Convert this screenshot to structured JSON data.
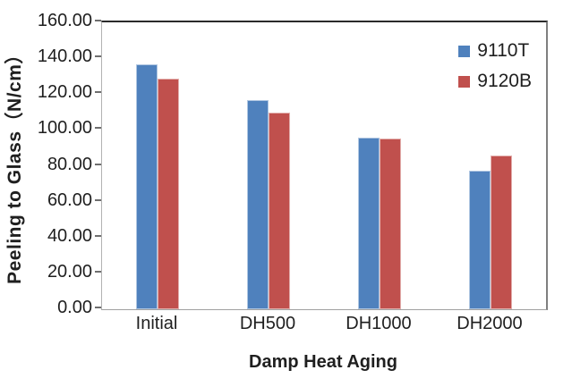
{
  "chart_data": {
    "type": "bar",
    "title": "",
    "categories": [
      "Initial",
      "DH500",
      "DH1000",
      "DH2000"
    ],
    "series": [
      {
        "name": "9110T",
        "color": "#4F81BD",
        "values": [
          136.5,
          116.5,
          95.5,
          77.5
        ]
      },
      {
        "name": "9120B",
        "color": "#C0504D",
        "values": [
          128.5,
          109.5,
          95.0,
          85.5
        ]
      }
    ],
    "xlabel": "Damp Heat Aging",
    "ylabel": "Peeling to Glass（N/cm）",
    "ylim": [
      0,
      160
    ],
    "ytick_step": 20,
    "ytick_labels": [
      "0.00",
      "20.00",
      "40.00",
      "60.00",
      "80.00",
      "100.00",
      "120.00",
      "140.00",
      "160.00"
    ],
    "grid": false,
    "legend_position": "top-right-inside",
    "colors": {
      "axis_line": "#a0a0a0",
      "plot_border_top": "#2b2b2b",
      "plot_border_right": "#7f7f7f",
      "text": "#1f1f1f"
    }
  }
}
